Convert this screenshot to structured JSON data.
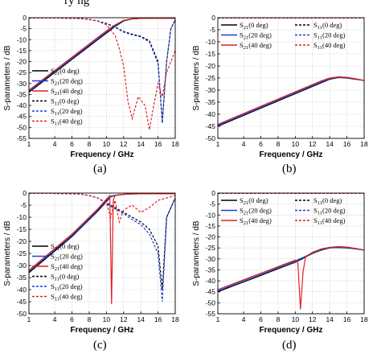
{
  "header_fragment": "ry                                     ng",
  "captions": [
    "(a)",
    "(b)",
    "(c)",
    "(d)"
  ],
  "chart_data": [
    {
      "type": "line",
      "panel": "(a)",
      "xlabel": "Frequency / GHz",
      "ylabel": "S-parameters / dB",
      "xticks": [
        1,
        4,
        6,
        8,
        10,
        12,
        14,
        16,
        18
      ],
      "yticks": [
        0,
        -5,
        -10,
        -15,
        -20,
        -25,
        -30,
        -35,
        -40,
        -45,
        -50,
        -55
      ],
      "xlim": [
        1,
        18
      ],
      "ylim": [
        -55,
        0
      ],
      "grid": true,
      "legend_position": "lower-left",
      "series": [
        {
          "name": "S21(0 deg)",
          "color": "#000000",
          "dash": "solid",
          "x": [
            1,
            2,
            3,
            4,
            5,
            6,
            7,
            8,
            9,
            10,
            11,
            12,
            13,
            14,
            15,
            16,
            17,
            18
          ],
          "y": [
            -34,
            -31,
            -28,
            -25,
            -22,
            -19,
            -16,
            -13,
            -10,
            -7,
            -4,
            -1.5,
            -0.6,
            -0.3,
            -0.2,
            -0.2,
            -0.2,
            -0.2
          ]
        },
        {
          "name": "S21(20 deg)",
          "color": "#1f3fd8",
          "dash": "solid",
          "x": [
            1,
            2,
            3,
            4,
            5,
            6,
            7,
            8,
            9,
            10,
            11,
            12,
            13,
            14,
            15,
            16,
            17,
            18
          ],
          "y": [
            -33.5,
            -30.5,
            -27.5,
            -24.5,
            -21.5,
            -18.5,
            -15.5,
            -12.5,
            -9.5,
            -6.5,
            -3.6,
            -1.3,
            -0.5,
            -0.3,
            -0.2,
            -0.2,
            -0.2,
            -0.2
          ]
        },
        {
          "name": "S21(40 deg)",
          "color": "#e02020",
          "dash": "solid",
          "x": [
            1,
            2,
            3,
            4,
            5,
            6,
            7,
            8,
            9,
            10,
            11,
            12,
            13,
            14,
            15,
            16,
            17,
            18
          ],
          "y": [
            -33,
            -30,
            -27,
            -24,
            -21,
            -18,
            -15,
            -12,
            -9,
            -6,
            -3.3,
            -1.2,
            -0.5,
            -0.3,
            -0.3,
            -0.3,
            -0.3,
            -0.3
          ]
        },
        {
          "name": "S11(0 deg)",
          "color": "#000000",
          "dash": "dash",
          "x": [
            1,
            3,
            5,
            7,
            8,
            9,
            10,
            11,
            12,
            13,
            14,
            15,
            16,
            16.5,
            17,
            17.5,
            18
          ],
          "y": [
            -0.1,
            -0.1,
            -0.2,
            -0.4,
            -0.8,
            -1.5,
            -2.6,
            -4.2,
            -6.3,
            -7.5,
            -8.5,
            -10.5,
            -20,
            -48,
            -20,
            -5,
            -1
          ]
        },
        {
          "name": "S11(20 deg)",
          "color": "#1f3fd8",
          "dash": "dash",
          "x": [
            1,
            3,
            5,
            7,
            8,
            9,
            10,
            11,
            12,
            13,
            14,
            15,
            16,
            16.5,
            17,
            17.5,
            18
          ],
          "y": [
            -0.1,
            -0.1,
            -0.2,
            -0.4,
            -0.8,
            -1.5,
            -2.7,
            -4.4,
            -6.6,
            -7.8,
            -8.8,
            -11,
            -21,
            -47,
            -20,
            -5,
            -1
          ]
        },
        {
          "name": "S11(40 deg)",
          "color": "#e02020",
          "dash": "dash",
          "x": [
            1,
            3,
            5,
            7,
            8,
            9,
            10,
            11,
            11.5,
            12,
            12.5,
            13,
            13.7,
            14.5,
            15,
            15.5,
            16,
            16.5,
            17,
            18
          ],
          "y": [
            -0.1,
            -0.1,
            -0.2,
            -0.4,
            -0.8,
            -1.6,
            -3.2,
            -8,
            -14,
            -22,
            -38,
            -46,
            -36,
            -40,
            -51,
            -40,
            -30,
            -36,
            -25,
            -15
          ]
        }
      ]
    },
    {
      "type": "line",
      "panel": "(b)",
      "xlabel": "Frequency / GHz",
      "ylabel": "S-parameters / dB",
      "xticks": [
        1,
        4,
        6,
        8,
        10,
        12,
        14,
        16,
        18
      ],
      "yticks": [
        0,
        -5,
        -10,
        -15,
        -20,
        -25,
        -30,
        -35,
        -40,
        -45,
        -50
      ],
      "xlim": [
        1,
        18
      ],
      "ylim": [
        -50,
        0
      ],
      "grid": true,
      "legend_position": "top",
      "series": [
        {
          "name": "S21(0 deg)",
          "color": "#000000",
          "dash": "solid",
          "x": [
            1,
            2,
            3,
            4,
            5,
            6,
            7,
            8,
            9,
            10,
            11,
            12,
            13,
            14,
            15,
            16,
            17,
            18
          ],
          "y": [
            -45,
            -43.5,
            -42,
            -40.5,
            -39,
            -37.5,
            -36,
            -34.5,
            -33,
            -31.5,
            -30,
            -28.5,
            -27,
            -25.5,
            -24.8,
            -25,
            -25.5,
            -26
          ]
        },
        {
          "name": "S21(20 deg)",
          "color": "#1f3fd8",
          "dash": "solid",
          "x": [
            1,
            2,
            3,
            4,
            5,
            6,
            7,
            8,
            9,
            10,
            11,
            12,
            13,
            14,
            15,
            16,
            17,
            18
          ],
          "y": [
            -44.6,
            -43.1,
            -41.6,
            -40.1,
            -38.6,
            -37.1,
            -35.6,
            -34.1,
            -32.6,
            -31.1,
            -29.6,
            -28.1,
            -26.6,
            -25.3,
            -24.7,
            -24.9,
            -25.4,
            -26
          ]
        },
        {
          "name": "S21(40 deg)",
          "color": "#e02020",
          "dash": "solid",
          "x": [
            1,
            2,
            3,
            4,
            5,
            6,
            7,
            8,
            9,
            10,
            11,
            12,
            13,
            14,
            15,
            16,
            17,
            18
          ],
          "y": [
            -44.2,
            -42.7,
            -41.2,
            -39.7,
            -38.2,
            -36.7,
            -35.2,
            -33.7,
            -32.2,
            -30.7,
            -29.2,
            -27.7,
            -26.2,
            -25,
            -24.5,
            -24.7,
            -25.3,
            -26
          ]
        },
        {
          "name": "S11(0 deg)",
          "color": "#000000",
          "dash": "dash",
          "x": [
            1,
            3,
            5,
            8,
            12,
            15,
            18
          ],
          "y": [
            -0.1,
            -0.1,
            -0.1,
            -0.1,
            -0.1,
            -0.1,
            -0.1
          ]
        },
        {
          "name": "S11(20 deg)",
          "color": "#1f3fd8",
          "dash": "dash",
          "x": [
            1,
            3,
            5,
            8,
            12,
            15,
            18
          ],
          "y": [
            -0.1,
            -0.1,
            -0.1,
            -0.1,
            -0.1,
            -0.1,
            -0.1
          ]
        },
        {
          "name": "S11(40 deg)",
          "color": "#e02020",
          "dash": "dash",
          "x": [
            1,
            3,
            5,
            8,
            12,
            15,
            18
          ],
          "y": [
            -0.1,
            -0.1,
            -0.1,
            -0.1,
            -0.1,
            -0.1,
            -0.1
          ]
        }
      ]
    },
    {
      "type": "line",
      "panel": "(c)",
      "xlabel": "Frequency / GHz",
      "ylabel": "S-parameters / dB",
      "xticks": [
        1,
        4,
        6,
        8,
        10,
        12,
        14,
        16,
        18
      ],
      "yticks": [
        0,
        -5,
        -10,
        -15,
        -20,
        -25,
        -30,
        -35,
        -40,
        -45,
        -50
      ],
      "xlim": [
        1,
        18
      ],
      "ylim": [
        -50,
        0
      ],
      "grid": true,
      "legend_position": "lower-left",
      "series": [
        {
          "name": "S21(0 deg)",
          "color": "#000000",
          "dash": "solid",
          "x": [
            1,
            2,
            3,
            4,
            5,
            6,
            7,
            8,
            9,
            10,
            10.5,
            11,
            12,
            13,
            14,
            15,
            16,
            17,
            18
          ],
          "y": [
            -33,
            -30,
            -27,
            -24,
            -21,
            -18,
            -14.5,
            -11,
            -7.5,
            -3.5,
            -1.5,
            -1,
            -0.5,
            -0.3,
            -0.3,
            -0.3,
            -0.3,
            -0.3,
            -0.3
          ]
        },
        {
          "name": "S21(20 deg)",
          "color": "#1f3fd8",
          "dash": "solid",
          "x": [
            1,
            2,
            3,
            4,
            5,
            6,
            7,
            8,
            9,
            10,
            10.5,
            11,
            12,
            13,
            14,
            15,
            16,
            17,
            18
          ],
          "y": [
            -32.5,
            -29.5,
            -26.5,
            -23.5,
            -20.5,
            -17.5,
            -14,
            -10.5,
            -7,
            -3,
            -1.3,
            -0.9,
            -0.5,
            -0.3,
            -0.3,
            -0.3,
            -0.3,
            -0.3,
            -0.3
          ]
        },
        {
          "name": "S21(40 deg)",
          "color": "#e02020",
          "dash": "solid",
          "x": [
            1,
            2,
            3,
            4,
            5,
            6,
            7,
            8,
            9,
            10,
            10.4,
            10.6,
            10.8,
            11,
            11.3,
            12,
            14,
            16,
            18
          ],
          "y": [
            -32,
            -29,
            -26,
            -23,
            -20,
            -17,
            -13.5,
            -10,
            -6.5,
            -2.5,
            -1,
            -46,
            -3,
            -1,
            -0.8,
            -0.5,
            -0.3,
            -0.3,
            -0.3
          ]
        },
        {
          "name": "S11(0 deg)",
          "color": "#000000",
          "dash": "dash",
          "x": [
            1,
            3,
            5,
            7,
            8,
            9,
            10,
            11,
            12,
            13,
            14,
            15,
            16,
            16.5,
            17,
            18
          ],
          "y": [
            -0.1,
            -0.1,
            -0.2,
            -0.4,
            -1,
            -2,
            -4,
            -6,
            -8,
            -10,
            -12,
            -15,
            -22,
            -40,
            -10,
            -2
          ]
        },
        {
          "name": "S11(20 deg)",
          "color": "#1f3fd8",
          "dash": "dash",
          "x": [
            1,
            3,
            5,
            7,
            8,
            9,
            10,
            11,
            12,
            13,
            14,
            15,
            16,
            16.5,
            17,
            18
          ],
          "y": [
            -0.1,
            -0.1,
            -0.2,
            -0.4,
            -1,
            -2,
            -4.5,
            -6.5,
            -8.5,
            -11,
            -13,
            -17,
            -25,
            -45,
            -10,
            -2
          ]
        },
        {
          "name": "S11(40 deg)",
          "color": "#e02020",
          "dash": "dash",
          "x": [
            1,
            3,
            5,
            7,
            8,
            9,
            10,
            10.5,
            11,
            11.5,
            12,
            13,
            14,
            15,
            16,
            17,
            18
          ],
          "y": [
            -0.1,
            -0.1,
            -0.2,
            -0.4,
            -1,
            -2,
            -4,
            -10,
            -3,
            -12,
            -7,
            -5,
            -8,
            -6,
            -3,
            -2,
            -1
          ]
        }
      ]
    },
    {
      "type": "line",
      "panel": "(d)",
      "xlabel": "Frequency / GHz",
      "ylabel": "S-parameters / dB",
      "xticks": [
        1,
        4,
        6,
        8,
        10,
        12,
        14,
        16,
        18
      ],
      "yticks": [
        0,
        -5,
        -10,
        -15,
        -20,
        -25,
        -30,
        -35,
        -40,
        -45,
        -50,
        -55
      ],
      "xlim": [
        1,
        18
      ],
      "ylim": [
        -55,
        0
      ],
      "grid": true,
      "legend_position": "top",
      "series": [
        {
          "name": "S21(0 deg)",
          "color": "#000000",
          "dash": "solid",
          "x": [
            1,
            2,
            3,
            4,
            5,
            6,
            7,
            8,
            9,
            10,
            10.5,
            10.8,
            11,
            12,
            13,
            14,
            15,
            16,
            17,
            18
          ],
          "y": [
            -45,
            -43.5,
            -42,
            -40.5,
            -39,
            -37.5,
            -36,
            -34.5,
            -33,
            -31.5,
            -30.5,
            -30,
            -29.5,
            -27.5,
            -26,
            -25,
            -24.8,
            -25,
            -25.4,
            -26
          ]
        },
        {
          "name": "S21(20 deg)",
          "color": "#1f3fd8",
          "dash": "solid",
          "x": [
            1,
            2,
            3,
            4,
            5,
            6,
            7,
            8,
            9,
            10,
            10.5,
            10.8,
            11,
            12,
            13,
            14,
            15,
            16,
            17,
            18
          ],
          "y": [
            -44.5,
            -43,
            -41.5,
            -40,
            -38.5,
            -37,
            -35.5,
            -34,
            -32.5,
            -31,
            -30,
            -29.5,
            -29.2,
            -27.3,
            -25.8,
            -24.9,
            -24.6,
            -24.8,
            -25.3,
            -26
          ]
        },
        {
          "name": "S21(40 deg)",
          "color": "#e02020",
          "dash": "solid",
          "x": [
            1,
            2,
            3,
            4,
            5,
            6,
            7,
            8,
            9,
            10,
            10.3,
            10.6,
            10.9,
            11.2,
            12,
            13,
            14,
            15,
            16,
            17,
            18
          ],
          "y": [
            -44,
            -42.5,
            -41,
            -39.5,
            -38,
            -36.5,
            -35,
            -33.5,
            -32,
            -30.5,
            -32,
            -53,
            -36,
            -29,
            -27,
            -25.5,
            -24.7,
            -24.4,
            -24.6,
            -25.2,
            -26
          ]
        },
        {
          "name": "S11(0 deg)",
          "color": "#000000",
          "dash": "dash",
          "x": [
            1,
            3,
            5,
            8,
            12,
            15,
            18
          ],
          "y": [
            -0.1,
            -0.1,
            -0.1,
            -0.1,
            -0.1,
            -0.1,
            -0.1
          ]
        },
        {
          "name": "S11(20 deg)",
          "color": "#1f3fd8",
          "dash": "dash",
          "x": [
            1,
            3,
            5,
            8,
            12,
            15,
            18
          ],
          "y": [
            -0.1,
            -0.1,
            -0.1,
            -0.1,
            -0.1,
            -0.1,
            -0.1
          ]
        },
        {
          "name": "S11(40 deg)",
          "color": "#e02020",
          "dash": "dash",
          "x": [
            1,
            3,
            5,
            8,
            12,
            15,
            18
          ],
          "y": [
            -0.1,
            -0.1,
            -0.1,
            -0.1,
            -0.1,
            -0.1,
            -0.1
          ]
        }
      ]
    }
  ]
}
